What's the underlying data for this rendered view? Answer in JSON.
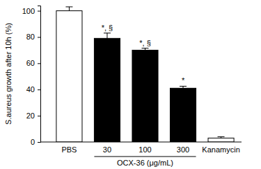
{
  "chart_data": {
    "type": "bar",
    "y_label": "S.aureus growth after 10h (%)",
    "categories": [
      "PBS",
      "30",
      "100",
      "300",
      "Kanamycin"
    ],
    "values": [
      100,
      79,
      70,
      41,
      3
    ],
    "errors": [
      3,
      4,
      1.5,
      1.5,
      1
    ],
    "colors": [
      "#ffffff",
      "#000000",
      "#000000",
      "#000000",
      "#ffffff"
    ],
    "annotations": [
      null,
      "*, §",
      "*, §",
      "*",
      null
    ],
    "x_group": {
      "label": "OCX-36 (μg/mL)",
      "members": [
        "30",
        "100",
        "300"
      ]
    },
    "ylim": [
      0,
      104
    ],
    "yticks": [
      0,
      20,
      40,
      60,
      80,
      100
    ],
    "grid": false
  }
}
